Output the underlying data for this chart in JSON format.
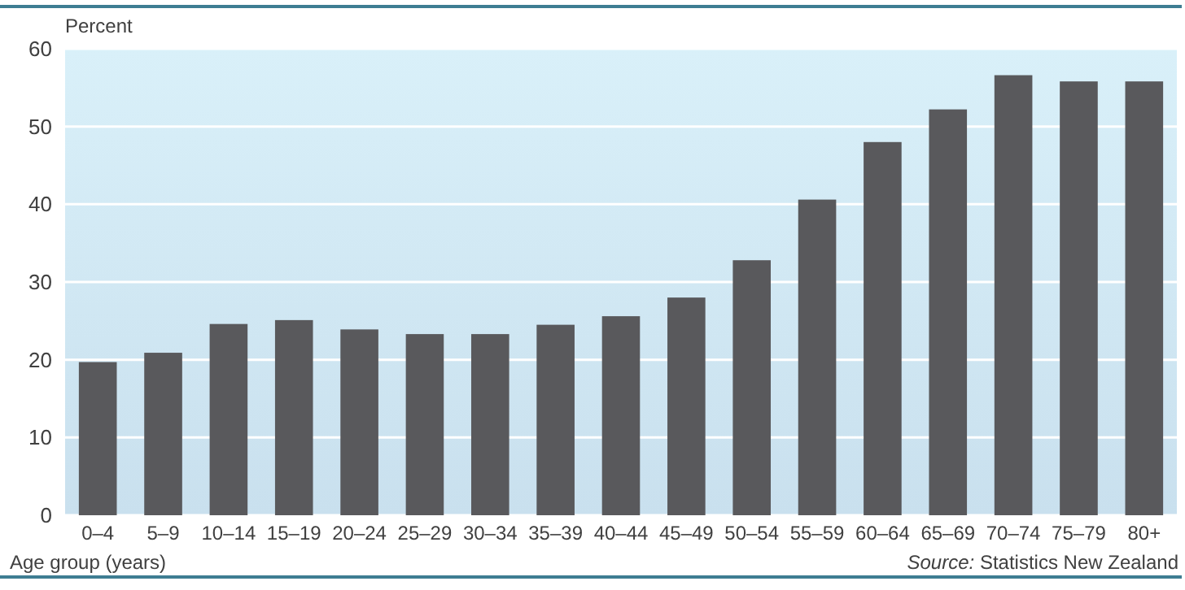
{
  "chart_data": {
    "type": "bar",
    "ylabel": "Percent",
    "xlabel": "Age group (years)",
    "categories": [
      "0–4",
      "5–9",
      "10–14",
      "15–19",
      "20–24",
      "25–29",
      "30–34",
      "35–39",
      "40–44",
      "45–49",
      "50–54",
      "55–59",
      "60–64",
      "65–69",
      "70–74",
      "75–79",
      "80+"
    ],
    "values": [
      19.7,
      20.9,
      24.6,
      25.1,
      23.9,
      23.3,
      23.3,
      24.5,
      25.6,
      28.0,
      32.8,
      40.6,
      48.0,
      52.2,
      56.6,
      55.8,
      55.8
    ],
    "color": "#59595c",
    "ylim": [
      0,
      60
    ],
    "yticks": [
      0,
      10,
      20,
      30,
      40,
      50,
      60
    ],
    "grid": "y",
    "annotations": [
      "Source: Statistics New Zealand"
    ]
  }
}
